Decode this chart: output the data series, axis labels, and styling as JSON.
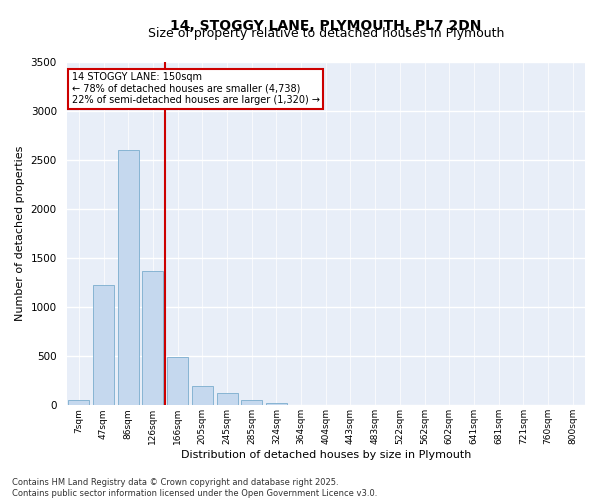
{
  "title": "14, STOGGY LANE, PLYMOUTH, PL7 2DN",
  "subtitle": "Size of property relative to detached houses in Plymouth",
  "xlabel": "Distribution of detached houses by size in Plymouth",
  "ylabel": "Number of detached properties",
  "categories": [
    "7sqm",
    "47sqm",
    "86sqm",
    "126sqm",
    "166sqm",
    "205sqm",
    "245sqm",
    "285sqm",
    "324sqm",
    "364sqm",
    "404sqm",
    "443sqm",
    "483sqm",
    "522sqm",
    "562sqm",
    "602sqm",
    "641sqm",
    "681sqm",
    "721sqm",
    "760sqm",
    "800sqm"
  ],
  "values": [
    55,
    1230,
    2600,
    1370,
    490,
    200,
    130,
    55,
    20,
    5,
    2,
    1,
    0,
    0,
    0,
    0,
    0,
    0,
    0,
    0,
    0
  ],
  "bar_color": "#c5d8ee",
  "bar_edge_color": "#7aadce",
  "vline_color": "#cc0000",
  "vline_position": 3.5,
  "annotation_title": "14 STOGGY LANE: 150sqm",
  "annotation_line1": "← 78% of detached houses are smaller (4,738)",
  "annotation_line2": "22% of semi-detached houses are larger (1,320) →",
  "annotation_box_edgecolor": "#cc0000",
  "ylim": [
    0,
    3500
  ],
  "yticks": [
    0,
    500,
    1000,
    1500,
    2000,
    2500,
    3000,
    3500
  ],
  "background_color": "#e8eef8",
  "footer": "Contains HM Land Registry data © Crown copyright and database right 2025.\nContains public sector information licensed under the Open Government Licence v3.0."
}
